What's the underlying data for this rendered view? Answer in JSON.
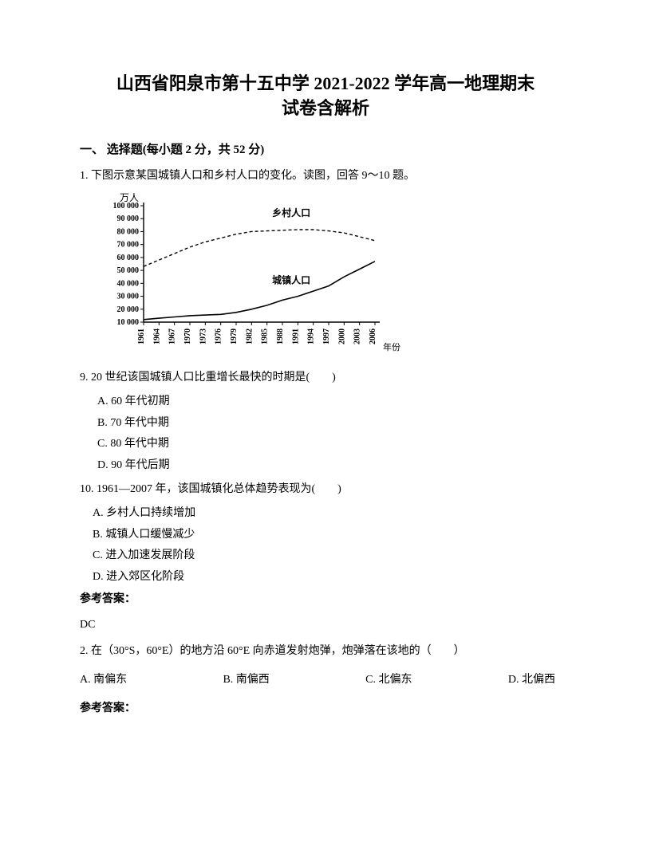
{
  "title_line1": "山西省阳泉市第十五中学 2021-2022 学年高一地理期末",
  "title_line2": "试卷含解析",
  "section_heading": "一、 选择题(每小题 2 分，共 52 分)",
  "q1": {
    "stem": "1. 下图示意某国城镇人口和乡村人口的变化。读图，回答 9～10 题。",
    "chart": {
      "type": "line",
      "y_unit": "万人",
      "x_unit": "年份",
      "y_ticks": [
        10000,
        20000,
        30000,
        40000,
        50000,
        60000,
        70000,
        80000,
        90000,
        100000
      ],
      "y_tick_labels": [
        "10 000",
        "20 000",
        "30 000",
        "40 000",
        "50 000",
        "60 000",
        "70 000",
        "80 000",
        "90 000",
        "100 000"
      ],
      "x_ticks": [
        1961,
        1964,
        1967,
        1970,
        1973,
        1976,
        1979,
        1982,
        1985,
        1988,
        1991,
        1994,
        1997,
        2000,
        2003,
        2006
      ],
      "series": [
        {
          "name": "乡村人口",
          "label": "乡村人口",
          "dash": "4,3",
          "color": "#000000",
          "width": 1.4,
          "points": [
            [
              1961,
              53000
            ],
            [
              1964,
              58000
            ],
            [
              1967,
              63000
            ],
            [
              1970,
              68000
            ],
            [
              1973,
              72000
            ],
            [
              1976,
              75000
            ],
            [
              1979,
              78000
            ],
            [
              1982,
              80000
            ],
            [
              1985,
              80500
            ],
            [
              1988,
              81000
            ],
            [
              1991,
              81500
            ],
            [
              1994,
              81500
            ],
            [
              1997,
              80500
            ],
            [
              2000,
              79000
            ],
            [
              2003,
              76000
            ],
            [
              2006,
              73000
            ]
          ]
        },
        {
          "name": "城镇人口",
          "label": "城镇人口",
          "dash": "none",
          "color": "#000000",
          "width": 1.6,
          "points": [
            [
              1961,
              12000
            ],
            [
              1964,
              13000
            ],
            [
              1967,
              14000
            ],
            [
              1970,
              15000
            ],
            [
              1973,
              15500
            ],
            [
              1976,
              16000
            ],
            [
              1979,
              17500
            ],
            [
              1982,
              20000
            ],
            [
              1985,
              23000
            ],
            [
              1988,
              27000
            ],
            [
              1991,
              30000
            ],
            [
              1994,
              34000
            ],
            [
              1997,
              38000
            ],
            [
              2000,
              45000
            ],
            [
              2003,
              51000
            ],
            [
              2006,
              57000
            ]
          ]
        }
      ],
      "axis_font_size": 10,
      "label_font_size": 12
    },
    "sub9": {
      "stem": "9.  20 世纪该国城镇人口比重增长最快的时期是(　　)",
      "opts": {
        "A": "A.  60 年代初期",
        "B": "B.  70 年代中期",
        "C": "C.  80 年代中期",
        "D": "D.  90 年代后期"
      }
    },
    "sub10": {
      "stem": "10. 1961—2007 年，该国城镇化总体趋势表现为(　　)",
      "opts": {
        "A": "A.  乡村人口持续增加",
        "B": "B.  城镇人口缓慢减少",
        "C": "C.  进入加速发展阶段",
        "D": "D.  进入郊区化阶段"
      }
    },
    "answer_label": "参考答案：",
    "answer": "DC"
  },
  "q2": {
    "stem": "2. 在（30°S，60°E）的地方沿 60°E 向赤道发射炮弹，炮弹落在该地的（　　）",
    "opts": {
      "A": "A.  南偏东",
      "B": "B. 南偏西",
      "C": "C. 北偏东",
      "D": "D.  北偏西"
    },
    "answer_label": "参考答案："
  }
}
